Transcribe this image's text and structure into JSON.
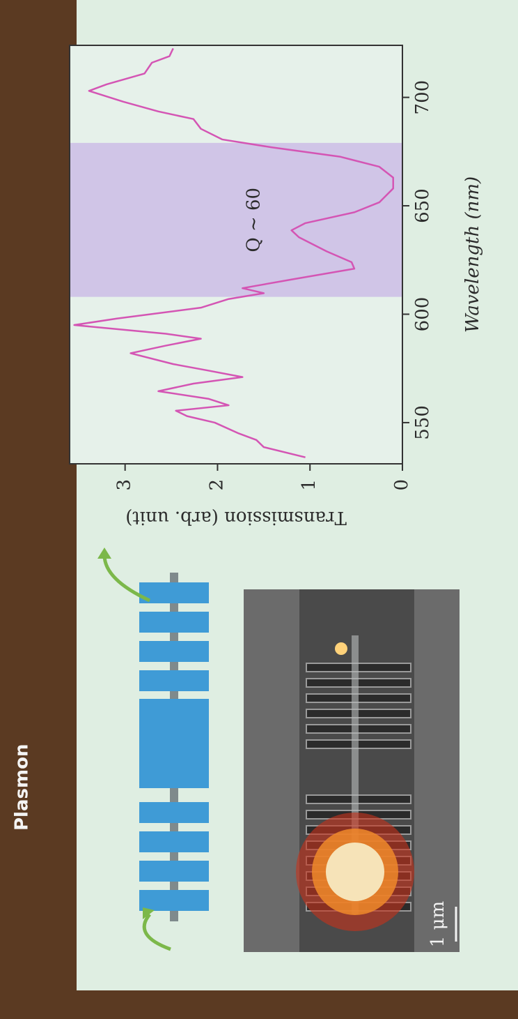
{
  "slide_title": "Plasmon",
  "scale_bar_label": "1 μm",
  "chart_data": {
    "type": "line",
    "x_label": "Wavelength (nm)",
    "y_label": "Transmission (arb. unit)",
    "annotation": "Q ~ 60",
    "x": [
      534,
      538.7,
      542,
      545,
      550,
      553,
      555.5,
      558,
      561,
      564.5,
      568,
      571,
      574,
      577,
      582,
      585.5,
      588.7,
      591,
      595,
      598,
      603,
      607,
      609.7,
      612,
      616,
      621,
      624,
      629,
      635.5,
      638.7,
      642,
      647,
      651.6,
      658,
      663,
      668,
      672.6,
      677,
      680.6,
      685.5,
      690,
      693.5,
      698,
      703,
      706,
      711,
      716,
      719,
      722.6
    ],
    "series": [
      {
        "color": "#d455b4",
        "values": [
          1.05,
          1.5,
          1.58,
          1.77,
          2.03,
          2.33,
          2.45,
          1.88,
          2.1,
          2.64,
          2.26,
          1.73,
          2.1,
          2.48,
          2.94,
          2.56,
          2.18,
          2.56,
          3.55,
          3.09,
          2.18,
          1.88,
          1.5,
          1.73,
          1.2,
          0.52,
          0.55,
          0.82,
          1.12,
          1.2,
          1.05,
          0.52,
          0.25,
          0.1,
          0.1,
          0.25,
          0.67,
          1.42,
          1.95,
          2.18,
          2.26,
          2.64,
          3.02,
          3.39,
          3.2,
          2.79,
          2.71,
          2.52,
          2.48
        ]
      }
    ],
    "shaded_range": [
      608,
      679
    ],
    "shade_color": "#cbbde6",
    "xlim": [
      531,
      724
    ],
    "ylim": [
      0,
      3.6
    ],
    "xticks": [
      550,
      600,
      650,
      700
    ],
    "yticks": [
      0,
      1,
      2,
      3
    ]
  }
}
